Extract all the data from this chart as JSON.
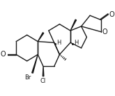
{
  "bg_color": "#ffffff",
  "line_color": "#1a1a1a",
  "line_width": 1.0,
  "label_fontsize": 6.0,
  "fig_width": 1.65,
  "fig_height": 1.38,
  "dpi": 100,
  "xlim": [
    -0.8,
    8.5
  ],
  "ylim": [
    -1.5,
    5.5
  ]
}
